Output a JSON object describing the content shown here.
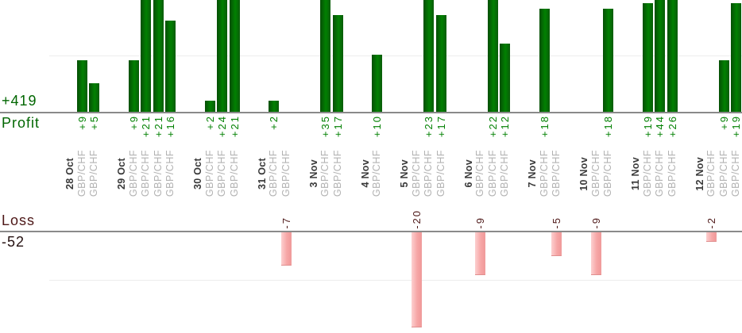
{
  "chart_data": {
    "type": "bar",
    "description": "Daily trade results split into a Profit bar chart (top, green) and a Loss bar chart (bottom, pink); one column per trade, grouped by date",
    "profit_axis": {
      "axis_label": "Profit",
      "total_label": "+419",
      "total_value": 419,
      "visible_ylim": [
        0,
        20
      ],
      "gridline_value": 10,
      "grid": "single horizontal gridline, bars above +20 are clipped by the top edge"
    },
    "loss_axis": {
      "axis_label": "Loss",
      "total_label": "-52",
      "total_value": -52,
      "visible_ylim": [
        0,
        -21
      ],
      "gridline_value": -10,
      "grid": "single horizontal gridline below the loss baseline"
    },
    "groups": [
      {
        "date": "28 Oct",
        "trades": [
          {
            "symbol": "GBP/CHF",
            "value": 9,
            "label": "+9"
          },
          {
            "symbol": "GBP/CHF",
            "value": 5,
            "label": "+5"
          }
        ]
      },
      {
        "date": "29 Oct",
        "trades": [
          {
            "symbol": "GBP/CHF",
            "value": 9,
            "label": "+9"
          },
          {
            "symbol": "GBP/CHF",
            "value": 21,
            "label": "+21"
          },
          {
            "symbol": "GBP/CHF",
            "value": 21,
            "label": "+21"
          },
          {
            "symbol": "GBP/CHF",
            "value": 16,
            "label": "+16"
          }
        ]
      },
      {
        "date": "30 Oct",
        "trades": [
          {
            "symbol": "GBP/CHF",
            "value": 2,
            "label": "+2"
          },
          {
            "symbol": "GBP/CHF",
            "value": 24,
            "label": "+24"
          },
          {
            "symbol": "GBP/CHF",
            "value": 21,
            "label": "+21"
          }
        ]
      },
      {
        "date": "31 Oct",
        "trades": [
          {
            "symbol": "GBP/CHF",
            "value": 2,
            "label": "+2"
          },
          {
            "symbol": "GBP/CHF",
            "value": -7,
            "label": "-7"
          }
        ]
      },
      {
        "date": "3 Nov",
        "trades": [
          {
            "symbol": "GBP/CHF",
            "value": 35,
            "label": "+35"
          },
          {
            "symbol": "GBP/CHF",
            "value": 17,
            "label": "+17"
          }
        ]
      },
      {
        "date": "4 Nov",
        "trades": [
          {
            "symbol": "GBP/CHF",
            "value": 10,
            "label": "+10"
          }
        ]
      },
      {
        "date": "5 Nov",
        "trades": [
          {
            "symbol": "GBP/CHF",
            "value": -20,
            "label": "-20"
          },
          {
            "symbol": "GBP/CHF",
            "value": 23,
            "label": "+23"
          },
          {
            "symbol": "GBP/CHF",
            "value": 17,
            "label": "+17"
          }
        ]
      },
      {
        "date": "6 Nov",
        "trades": [
          {
            "symbol": "GBP/CHF",
            "value": -9,
            "label": "-9"
          },
          {
            "symbol": "GBP/CHF",
            "value": 22,
            "label": "+22"
          },
          {
            "symbol": "GBP/CHF",
            "value": 12,
            "label": "+12"
          }
        ]
      },
      {
        "date": "7 Nov",
        "trades": [
          {
            "symbol": "GBP/CHF",
            "value": 18,
            "label": "+18"
          },
          {
            "symbol": "GBP/CHF",
            "value": -5,
            "label": "-5"
          }
        ]
      },
      {
        "date": "10 Nov",
        "trades": [
          {
            "symbol": "GBP/CHF",
            "value": -9,
            "label": "-9"
          },
          {
            "symbol": "GBP/CHF",
            "value": 18,
            "label": "+18"
          }
        ]
      },
      {
        "date": "11 Nov",
        "trades": [
          {
            "symbol": "GBP/CHF",
            "value": 19,
            "label": "+19"
          },
          {
            "symbol": "GBP/CHF",
            "value": 44,
            "label": "+44"
          },
          {
            "symbol": "GBP/CHF",
            "value": 26,
            "label": "+26"
          }
        ]
      },
      {
        "date": "12 Nov",
        "trades": [
          {
            "symbol": "GBP/CHF",
            "value": -2,
            "label": "-2"
          },
          {
            "symbol": "GBP/CHF",
            "value": 9,
            "label": "+9"
          },
          {
            "symbol": "GBP/CHF",
            "value": 19,
            "label": "+19"
          }
        ]
      }
    ],
    "colors": {
      "profit_bar": "#018001",
      "loss_bar": "#f6a6a6",
      "profit_value_text": "#018001",
      "profit_side_text": "#016601",
      "loss_value_text": "#4d1717",
      "loss_side_text": "#4d1717",
      "date_text": "#3a3a3a",
      "symbol_text": "#b2b2b2",
      "axis_line": "#8a8a8a",
      "gridline": "#ececec"
    }
  }
}
